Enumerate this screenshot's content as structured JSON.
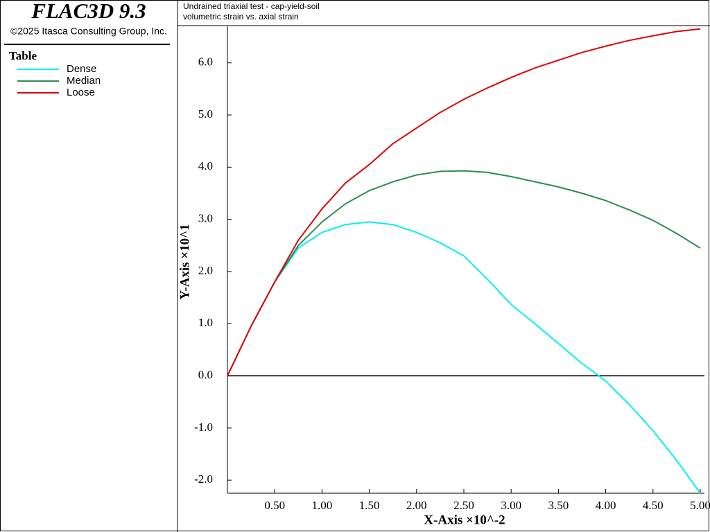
{
  "app_title": "FLAC3D 9.3",
  "copyright": "©2025 Itasca Consulting Group, Inc.",
  "legend_title": "Table",
  "header": [
    "Undrained triaxial test - cap-yield-soil",
    "volumetric strain vs. axial strain"
  ],
  "chart_data": {
    "type": "line",
    "xlabel": "X-Axis ×10^-2",
    "ylabel": "Y-Axis ×10^1",
    "x": [
      0,
      0.25,
      0.5,
      0.75,
      1.0,
      1.25,
      1.5,
      1.75,
      2.0,
      2.25,
      2.5,
      2.75,
      3.0,
      3.25,
      3.5,
      3.75,
      4.0,
      4.25,
      4.5,
      4.75,
      5.0
    ],
    "series": [
      {
        "name": "Dense",
        "color": "#00f0f0",
        "values": [
          0,
          0.95,
          1.8,
          2.45,
          2.75,
          2.9,
          2.95,
          2.9,
          2.75,
          2.55,
          2.3,
          1.85,
          1.37,
          1.0,
          0.62,
          0.24,
          -0.1,
          -0.55,
          -1.05,
          -1.62,
          -2.25
        ]
      },
      {
        "name": "Median",
        "color": "#2e8b57",
        "values": [
          0,
          0.95,
          1.8,
          2.5,
          2.95,
          3.3,
          3.55,
          3.72,
          3.85,
          3.92,
          3.93,
          3.9,
          3.82,
          3.72,
          3.62,
          3.5,
          3.36,
          3.18,
          2.98,
          2.73,
          2.45
        ]
      },
      {
        "name": "Loose",
        "color": "#e00000",
        "values": [
          0,
          0.95,
          1.8,
          2.6,
          3.2,
          3.7,
          4.05,
          4.45,
          4.75,
          5.05,
          5.3,
          5.52,
          5.72,
          5.9,
          6.05,
          6.2,
          6.32,
          6.43,
          6.52,
          6.6,
          6.65
        ]
      }
    ],
    "xlim": [
      0,
      5.0
    ],
    "ylim": [
      -2.25,
      6.7
    ],
    "xticks": [
      {
        "value": 0.5,
        "label": "0.50"
      },
      {
        "value": 1.0,
        "label": "1.00"
      },
      {
        "value": 1.5,
        "label": "1.50"
      },
      {
        "value": 2.0,
        "label": "2.00"
      },
      {
        "value": 2.5,
        "label": "2.50"
      },
      {
        "value": 3.0,
        "label": "3.00"
      },
      {
        "value": 3.5,
        "label": "3.50"
      },
      {
        "value": 4.0,
        "label": "4.00"
      },
      {
        "value": 4.5,
        "label": "4.50"
      },
      {
        "value": 5.0,
        "label": "5.00"
      }
    ],
    "yticks": [
      {
        "value": -2,
        "label": "-2.0"
      },
      {
        "value": -1,
        "label": "-1.0"
      },
      {
        "value": 0,
        "label": "0.0"
      },
      {
        "value": 1,
        "label": "1.0"
      },
      {
        "value": 2,
        "label": "2.0"
      },
      {
        "value": 3,
        "label": "3.0"
      },
      {
        "value": 4,
        "label": "4.0"
      },
      {
        "value": 5,
        "label": "5.0"
      },
      {
        "value": 6,
        "label": "6.0"
      }
    ],
    "zero_line": true
  }
}
